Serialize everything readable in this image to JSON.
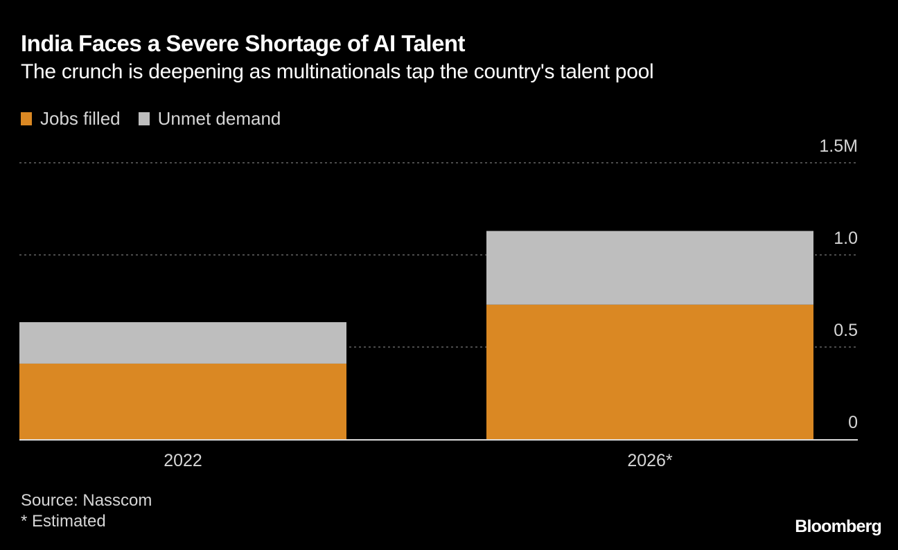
{
  "chart_data": {
    "type": "bar",
    "stacked": true,
    "title": "India Faces a Severe Shortage of AI Talent",
    "subtitle": "The crunch is deepening as multinationals tap the country's talent pool",
    "categories": [
      "2022",
      "2026*"
    ],
    "series": [
      {
        "name": "Jobs filled",
        "color": "#DA8823",
        "values": [
          0.41,
          0.73
        ]
      },
      {
        "name": "Unmet demand",
        "color": "#BEBEBE",
        "values": [
          0.225,
          0.4
        ]
      }
    ],
    "xlabel": "",
    "ylabel": "",
    "ylim": [
      0,
      1.5
    ],
    "yticks": [
      {
        "value": 0,
        "label": "0"
      },
      {
        "value": 0.5,
        "label": "0.5"
      },
      {
        "value": 1.0,
        "label": "1.0"
      },
      {
        "value": 1.5,
        "label": "1.5M"
      }
    ],
    "grid": true,
    "legend_position": "top-left",
    "source": "Source: Nasscom",
    "note": "* Estimated",
    "brand": "Bloomberg"
  }
}
